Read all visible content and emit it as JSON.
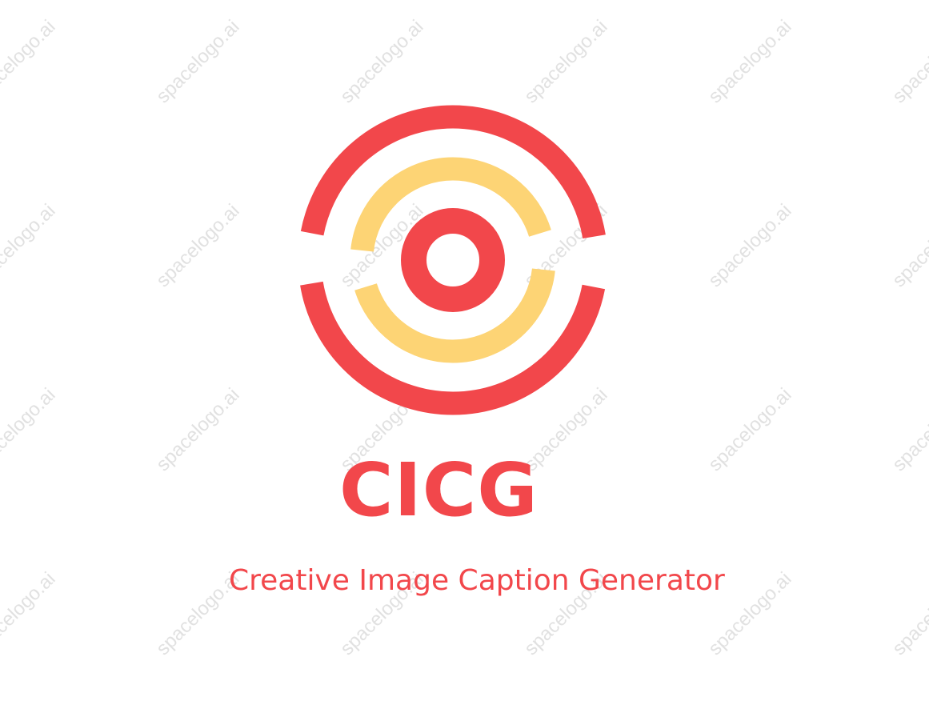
{
  "logo": {
    "brand_name": "CICG",
    "tagline": "Creative Image Caption Generator",
    "mark_icon": "concentric-target-rings-icon"
  },
  "watermark": {
    "text": "spacelogo.ai"
  },
  "colors": {
    "primary_red": "#f2474b",
    "accent_yellow": "#fdd475",
    "background": "#ffffff"
  }
}
